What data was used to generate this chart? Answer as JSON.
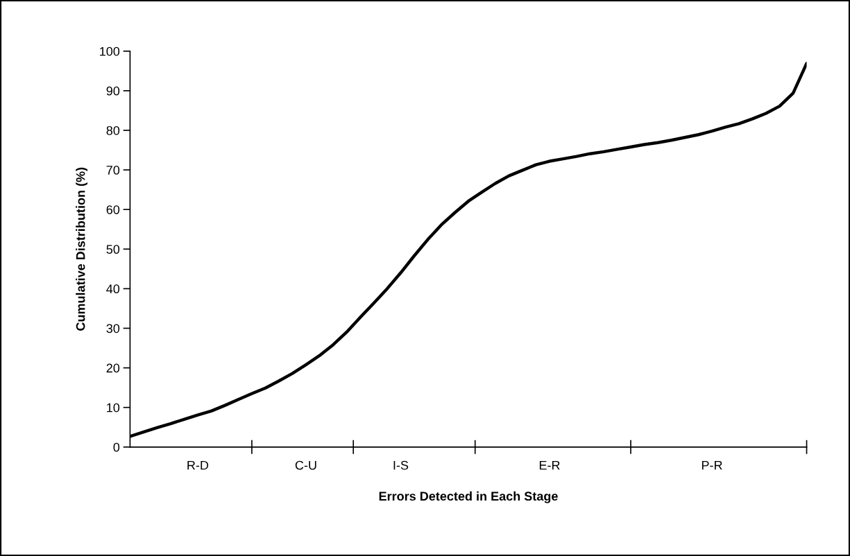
{
  "chart_data": {
    "type": "line",
    "xlabel": "Errors Detected in Each Stage",
    "ylabel": "Cumulative Distribution (%)",
    "categories": [
      null,
      null,
      null,
      null,
      null,
      "R-D",
      null,
      null,
      null,
      null,
      null,
      null,
      null,
      "C-U",
      null,
      null,
      null,
      null,
      null,
      null,
      "I-S",
      null,
      null,
      null,
      null,
      null,
      null,
      null,
      null,
      null,
      null,
      "E-R",
      null,
      null,
      null,
      null,
      null,
      null,
      null,
      null,
      null,
      null,
      null,
      "P-R",
      null,
      null,
      null,
      null,
      null,
      null,
      null
    ],
    "series": [
      {
        "color": "#000000",
        "values": [
          2.7,
          3.8,
          4.9,
          5.9,
          7.0,
          8.1,
          9.1,
          10.5,
          12.0,
          13.5,
          14.9,
          16.7,
          18.6,
          20.8,
          23.1,
          25.8,
          29.0,
          32.7,
          36.3,
          40.0,
          44.0,
          48.3,
          52.4,
          56.1,
          59.2,
          62.1,
          64.4,
          66.6,
          68.5,
          69.9,
          71.3,
          72.2,
          72.8,
          73.4,
          74.1,
          74.6,
          75.2,
          75.8,
          76.4,
          76.9,
          77.5,
          78.2,
          78.9,
          79.8,
          80.8,
          81.7,
          82.9,
          84.3,
          86.1,
          89.4,
          96.9
        ]
      }
    ],
    "ylim": [
      0,
      100
    ],
    "yticks": [
      0,
      10,
      20,
      30,
      40,
      50,
      60,
      70,
      80,
      90,
      100
    ],
    "grid": false,
    "legend": false,
    "marker": "none",
    "line_style": "solid"
  }
}
